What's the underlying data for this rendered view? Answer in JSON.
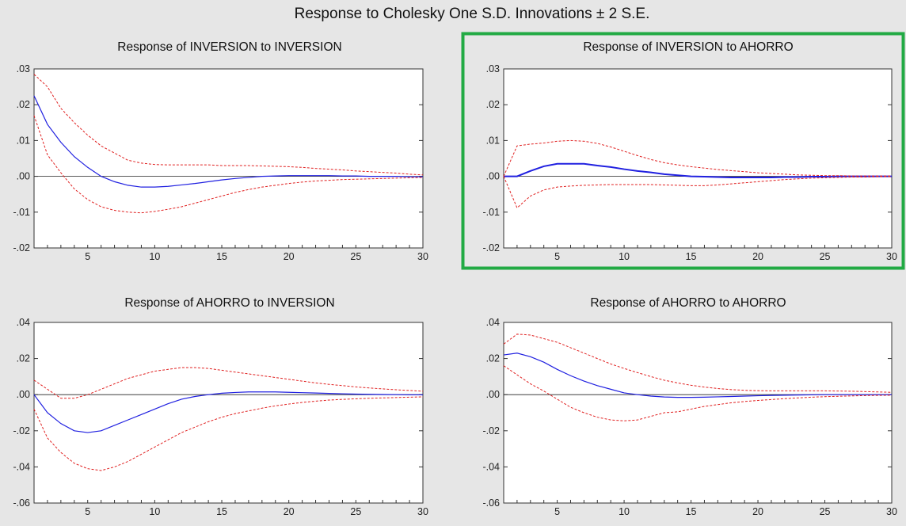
{
  "figure": {
    "title": "Response to Cholesky One S.D. Innovations ± 2 S.E.",
    "background": "#e6e6e6",
    "colors": {
      "response": "#2020e0",
      "band": "#e02020",
      "highlight": "#22aa44",
      "zero": "#222222"
    }
  },
  "chart_data": [
    {
      "type": "line",
      "title": "Response of INVERSION to INVERSION",
      "xlim": [
        1,
        30
      ],
      "ylim": [
        -0.02,
        0.03
      ],
      "xticks": [
        5,
        10,
        15,
        20,
        25,
        30
      ],
      "xtick_labels": [
        "5",
        "10",
        "15",
        "20",
        "25",
        "30"
      ],
      "yticks": [
        0.03,
        0.02,
        0.01,
        0.0,
        -0.01,
        -0.02
      ],
      "ytick_labels": [
        ".03",
        ".02",
        ".01",
        ".00",
        "-.01",
        "-.02"
      ],
      "x": [
        1,
        2,
        3,
        4,
        5,
        6,
        7,
        8,
        9,
        10,
        11,
        12,
        13,
        14,
        15,
        16,
        17,
        18,
        19,
        20,
        21,
        22,
        23,
        24,
        25,
        26,
        27,
        28,
        29,
        30
      ],
      "series": [
        {
          "role": "response",
          "values": [
            0.0225,
            0.0145,
            0.0095,
            0.0055,
            0.0025,
            0.0,
            -0.0015,
            -0.0025,
            -0.003,
            -0.003,
            -0.0028,
            -0.0024,
            -0.002,
            -0.0015,
            -0.001,
            -0.0006,
            -0.0003,
            0.0,
            0.0001,
            0.0002,
            0.0002,
            0.0002,
            0.0002,
            0.0001,
            0.0001,
            0.0,
            0.0,
            0.0,
            -0.0001,
            -0.0001
          ]
        },
        {
          "role": "upper_band",
          "values": [
            0.0285,
            0.025,
            0.019,
            0.015,
            0.0115,
            0.0085,
            0.0065,
            0.0045,
            0.0037,
            0.0033,
            0.0032,
            0.0032,
            0.0032,
            0.0032,
            0.003,
            0.003,
            0.003,
            0.0029,
            0.0028,
            0.0027,
            0.0025,
            0.0022,
            0.002,
            0.0018,
            0.0015,
            0.0013,
            0.0011,
            0.0009,
            0.0006,
            0.0004
          ]
        },
        {
          "role": "lower_band",
          "values": [
            0.017,
            0.006,
            0.001,
            -0.0035,
            -0.0065,
            -0.0085,
            -0.0095,
            -0.01,
            -0.0102,
            -0.0098,
            -0.0092,
            -0.0085,
            -0.0075,
            -0.0065,
            -0.0055,
            -0.0045,
            -0.0037,
            -0.003,
            -0.0025,
            -0.002,
            -0.0016,
            -0.0013,
            -0.0011,
            -0.0009,
            -0.0008,
            -0.0007,
            -0.0006,
            -0.0005,
            -0.0004,
            -0.0003
          ]
        }
      ]
    },
    {
      "type": "line",
      "title": "Response of INVERSION to AHORRO",
      "highlighted": true,
      "xlim": [
        1,
        30
      ],
      "ylim": [
        -0.02,
        0.03
      ],
      "xticks": [
        5,
        10,
        15,
        20,
        25,
        30
      ],
      "xtick_labels": [
        "5",
        "10",
        "15",
        "20",
        "25",
        "30"
      ],
      "yticks": [
        0.03,
        0.02,
        0.01,
        0.0,
        -0.01,
        -0.02
      ],
      "ytick_labels": [
        ".03",
        ".02",
        ".01",
        ".00",
        "-.01",
        "-.02"
      ],
      "x": [
        1,
        2,
        3,
        4,
        5,
        6,
        7,
        8,
        9,
        10,
        11,
        12,
        13,
        14,
        15,
        16,
        17,
        18,
        19,
        20,
        21,
        22,
        23,
        24,
        25,
        26,
        27,
        28,
        29,
        30
      ],
      "series": [
        {
          "role": "response",
          "values": [
            0.0,
            0.0,
            0.0015,
            0.0028,
            0.0035,
            0.0035,
            0.0035,
            0.003,
            0.0026,
            0.002,
            0.0015,
            0.0011,
            0.0006,
            0.0003,
            0.0,
            -0.0001,
            -0.0002,
            -0.0003,
            -0.0003,
            -0.0003,
            -0.0003,
            -0.0002,
            -0.0002,
            -0.0001,
            -0.0001,
            0.0,
            0.0,
            0.0,
            0.0,
            0.0
          ]
        },
        {
          "role": "upper_band",
          "values": [
            0.0,
            0.0085,
            0.009,
            0.0093,
            0.0098,
            0.01,
            0.0098,
            0.0092,
            0.0082,
            0.007,
            0.0058,
            0.0047,
            0.0038,
            0.0032,
            0.0027,
            0.0023,
            0.0019,
            0.0016,
            0.0013,
            0.001,
            0.0008,
            0.0006,
            0.0004,
            0.0003,
            0.0002,
            0.0002,
            0.0001,
            0.0001,
            0.0001,
            0.0001
          ]
        },
        {
          "role": "lower_band",
          "values": [
            0.0,
            -0.0088,
            -0.0055,
            -0.0038,
            -0.003,
            -0.0027,
            -0.0025,
            -0.0024,
            -0.0023,
            -0.0023,
            -0.0023,
            -0.0023,
            -0.0024,
            -0.0025,
            -0.0026,
            -0.0026,
            -0.0024,
            -0.0021,
            -0.0018,
            -0.0015,
            -0.0012,
            -0.0009,
            -0.0007,
            -0.0005,
            -0.0004,
            -0.0003,
            -0.0002,
            -0.0002,
            -0.0001,
            -0.0001
          ]
        }
      ]
    },
    {
      "type": "line",
      "title": "Response of AHORRO to INVERSION",
      "xlim": [
        1,
        30
      ],
      "ylim": [
        -0.06,
        0.04
      ],
      "xticks": [
        5,
        10,
        15,
        20,
        25,
        30
      ],
      "xtick_labels": [
        "5",
        "10",
        "15",
        "20",
        "25",
        "30"
      ],
      "yticks": [
        0.04,
        0.02,
        0.0,
        -0.02,
        -0.04,
        -0.06
      ],
      "ytick_labels": [
        ".04",
        ".02",
        ".00",
        "-.02",
        "-.04",
        "-.06"
      ],
      "x": [
        1,
        2,
        3,
        4,
        5,
        6,
        7,
        8,
        9,
        10,
        11,
        12,
        13,
        14,
        15,
        16,
        17,
        18,
        19,
        20,
        21,
        22,
        23,
        24,
        25,
        26,
        27,
        28,
        29,
        30
      ],
      "series": [
        {
          "role": "response",
          "values": [
            0.0,
            -0.01,
            -0.016,
            -0.02,
            -0.021,
            -0.02,
            -0.017,
            -0.014,
            -0.011,
            -0.008,
            -0.005,
            -0.0025,
            -0.001,
            0.0,
            0.0008,
            0.0012,
            0.0015,
            0.0015,
            0.0015,
            0.0013,
            0.0011,
            0.0009,
            0.0007,
            0.0005,
            0.0003,
            0.0002,
            0.0001,
            0.0,
            -0.0001,
            -0.0001
          ]
        },
        {
          "role": "upper_band",
          "values": [
            0.008,
            0.003,
            -0.002,
            -0.002,
            0.0,
            0.003,
            0.006,
            0.009,
            0.011,
            0.013,
            0.014,
            0.015,
            0.015,
            0.0145,
            0.0135,
            0.0125,
            0.0115,
            0.0105,
            0.0095,
            0.0085,
            0.0075,
            0.0065,
            0.0057,
            0.005,
            0.0043,
            0.0037,
            0.0032,
            0.0027,
            0.0023,
            0.0019
          ]
        },
        {
          "role": "lower_band",
          "values": [
            -0.008,
            -0.024,
            -0.032,
            -0.038,
            -0.041,
            -0.042,
            -0.04,
            -0.037,
            -0.033,
            -0.029,
            -0.025,
            -0.021,
            -0.018,
            -0.015,
            -0.0125,
            -0.0105,
            -0.009,
            -0.0075,
            -0.0062,
            -0.0052,
            -0.0043,
            -0.0036,
            -0.003,
            -0.0026,
            -0.0023,
            -0.002,
            -0.0018,
            -0.0016,
            -0.0014,
            -0.0012
          ]
        }
      ]
    },
    {
      "type": "line",
      "title": "Response of AHORRO to AHORRO",
      "xlim": [
        1,
        30
      ],
      "ylim": [
        -0.06,
        0.04
      ],
      "xticks": [
        5,
        10,
        15,
        20,
        25,
        30
      ],
      "xtick_labels": [
        "5",
        "10",
        "15",
        "20",
        "25",
        "30"
      ],
      "yticks": [
        0.04,
        0.02,
        0.0,
        -0.02,
        -0.04,
        -0.06
      ],
      "ytick_labels": [
        ".04",
        ".02",
        ".00",
        "-.02",
        "-.04",
        "-.06"
      ],
      "x": [
        1,
        2,
        3,
        4,
        5,
        6,
        7,
        8,
        9,
        10,
        11,
        12,
        13,
        14,
        15,
        16,
        17,
        18,
        19,
        20,
        21,
        22,
        23,
        24,
        25,
        26,
        27,
        28,
        29,
        30
      ],
      "series": [
        {
          "role": "response",
          "values": [
            0.022,
            0.023,
            0.021,
            0.018,
            0.014,
            0.0105,
            0.0075,
            0.005,
            0.003,
            0.001,
            0.0,
            -0.0008,
            -0.0013,
            -0.0015,
            -0.0015,
            -0.0014,
            -0.0012,
            -0.001,
            -0.0008,
            -0.0006,
            -0.0004,
            -0.0003,
            -0.0002,
            -0.0001,
            0.0,
            0.0,
            0.0,
            0.0,
            0.0,
            0.0
          ]
        },
        {
          "role": "upper_band",
          "values": [
            0.028,
            0.0335,
            0.033,
            0.031,
            0.029,
            0.026,
            0.023,
            0.02,
            0.017,
            0.0145,
            0.0122,
            0.01,
            0.008,
            0.0065,
            0.0052,
            0.0042,
            0.0034,
            0.0028,
            0.0024,
            0.0022,
            0.0021,
            0.0021,
            0.0021,
            0.0021,
            0.0021,
            0.002,
            0.0019,
            0.0017,
            0.0015,
            0.0013
          ]
        },
        {
          "role": "lower_band",
          "values": [
            0.016,
            0.011,
            0.006,
            0.002,
            -0.0025,
            -0.007,
            -0.01,
            -0.0125,
            -0.014,
            -0.0145,
            -0.014,
            -0.012,
            -0.01,
            -0.0095,
            -0.008,
            -0.0065,
            -0.0055,
            -0.0045,
            -0.0038,
            -0.0032,
            -0.0027,
            -0.0022,
            -0.0018,
            -0.0014,
            -0.0011,
            -0.0009,
            -0.0007,
            -0.0005,
            -0.0004,
            -0.0003
          ]
        }
      ]
    }
  ]
}
